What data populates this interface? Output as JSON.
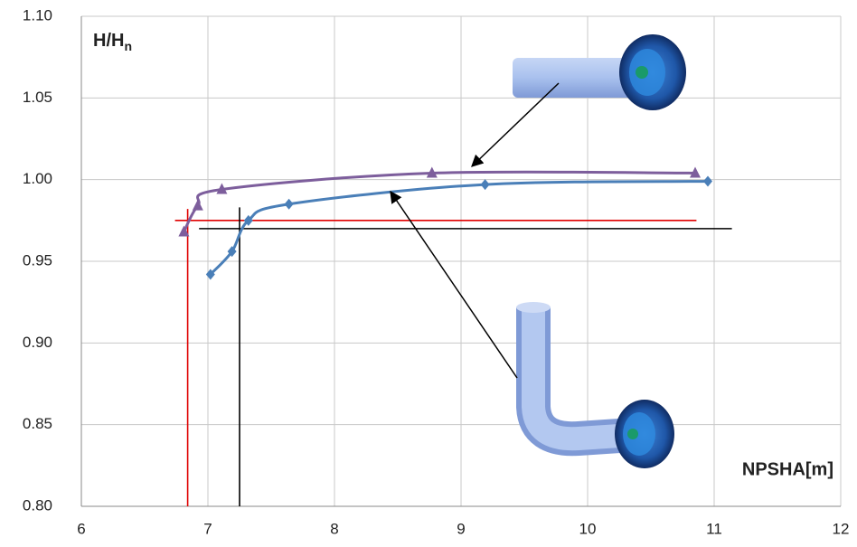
{
  "chart_data": {
    "type": "line",
    "y_label": "H/H",
    "y_label_subscript": "n",
    "x_label": "NPSHA[m]",
    "xlim": [
      6,
      12
    ],
    "xticks": [
      6,
      7,
      8,
      9,
      10,
      11,
      12
    ],
    "ylim": [
      0.8,
      1.1
    ],
    "yticks": [
      {
        "value": 0.8,
        "label": "0.80"
      },
      {
        "value": 0.85,
        "label": "0.85"
      },
      {
        "value": 0.9,
        "label": "0.90"
      },
      {
        "value": 0.95,
        "label": "0.95"
      },
      {
        "value": 1.0,
        "label": "1.00"
      },
      {
        "value": 1.05,
        "label": "1.05"
      },
      {
        "value": 1.1,
        "label": "1.10"
      }
    ],
    "grid": true,
    "series": [
      {
        "color": "#7d5e9c",
        "marker": "triangle",
        "x": [
          6.81,
          6.92,
          7.11,
          8.77,
          10.85
        ],
        "values": [
          0.968,
          0.984,
          0.994,
          1.004,
          1.004
        ]
      },
      {
        "color": "#4a7fb8",
        "marker": "diamond",
        "x": [
          7.02,
          7.19,
          7.32,
          7.64,
          9.19,
          10.95
        ],
        "values": [
          0.942,
          0.956,
          0.975,
          0.985,
          0.997,
          0.999
        ]
      }
    ],
    "reference_lines": [
      {
        "color": "#e00000",
        "x": [
          6.74,
          10.86
        ],
        "y": [
          0.975,
          0.975
        ]
      },
      {
        "color": "#e00000",
        "x": [
          6.84,
          6.84
        ],
        "y": [
          0.8,
          0.982
        ]
      },
      {
        "color": "#000000",
        "x": [
          6.93,
          11.14
        ],
        "y": [
          0.97,
          0.97
        ]
      },
      {
        "color": "#000000",
        "x": [
          7.25,
          7.25
        ],
        "y": [
          0.8,
          0.983
        ]
      }
    ]
  }
}
